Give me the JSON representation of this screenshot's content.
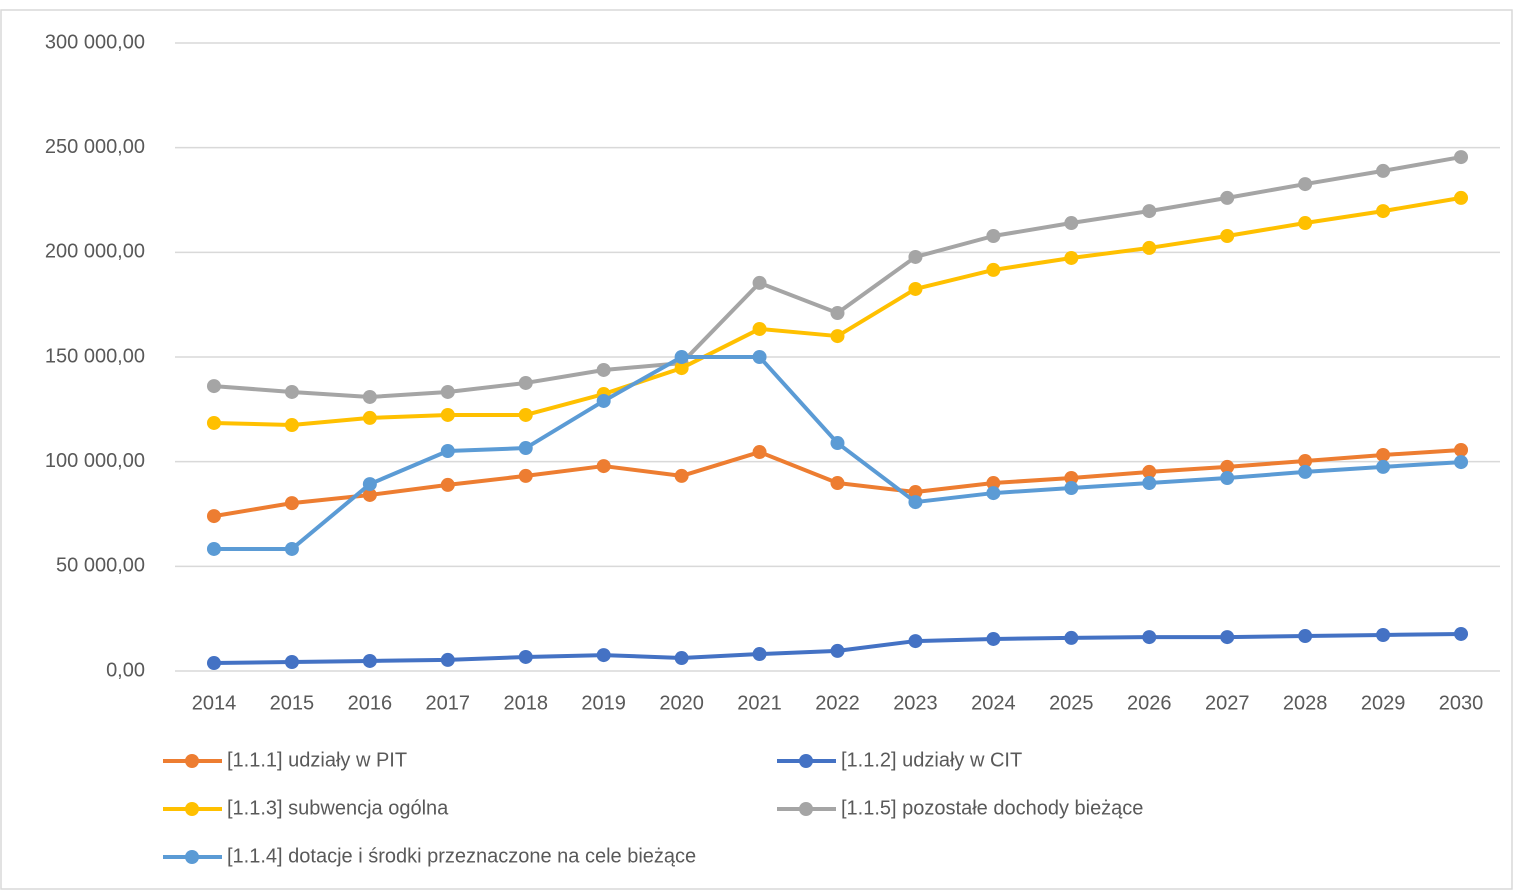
{
  "chart_data": {
    "type": "line",
    "categories": [
      "2014",
      "2015",
      "2016",
      "2017",
      "2018",
      "2019",
      "2020",
      "2021",
      "2022",
      "2023",
      "2024",
      "2025",
      "2026",
      "2027",
      "2028",
      "2029",
      "2030"
    ],
    "series": [
      {
        "name": "[1.1.1] udziały w PIT",
        "color": "#ed7d31",
        "values": [
          74000,
          80200,
          84100,
          88900,
          93200,
          97900,
          93200,
          104600,
          89800,
          85500,
          89800,
          92200,
          95100,
          97500,
          100300,
          103200,
          105600
        ]
      },
      {
        "name": "[1.1.2] udziały w CIT",
        "color": "#4472c4",
        "values": [
          3800,
          4300,
          4800,
          5300,
          6700,
          7600,
          6200,
          8100,
          9600,
          14300,
          15300,
          15800,
          16200,
          16200,
          16700,
          17200,
          17700
        ]
      },
      {
        "name": "[1.1.3] subwencja ogólna",
        "color": "#ffc000",
        "values": [
          118500,
          117500,
          120900,
          122300,
          122300,
          132300,
          144700,
          163400,
          160000,
          182500,
          191600,
          197300,
          202100,
          207800,
          214000,
          219700,
          226000
        ]
      },
      {
        "name": "[1.1.5]  pozostałe dochody bieżące",
        "color": "#a5a5a5",
        "values": [
          136100,
          133300,
          130900,
          133300,
          137600,
          143800,
          147100,
          185400,
          171000,
          197800,
          207800,
          214000,
          219700,
          226000,
          232600,
          238900,
          245500
        ]
      },
      {
        "name": "[1.1.4]  dotacje i środki przeznaczone na cele bieżące",
        "color": "#5b9bd5",
        "values": [
          58300,
          58300,
          89300,
          105100,
          106500,
          129000,
          150000,
          150000,
          108900,
          80700,
          85000,
          87400,
          89800,
          92200,
          95100,
          97500,
          99800
        ]
      }
    ],
    "ylim": [
      0,
      300000
    ],
    "yticks": [
      {
        "value": 0,
        "label": "0,00"
      },
      {
        "value": 50000,
        "label": "50 000,00"
      },
      {
        "value": 100000,
        "label": "100 000,00"
      },
      {
        "value": 150000,
        "label": "150 000,00"
      },
      {
        "value": 200000,
        "label": "200 000,00"
      },
      {
        "value": 250000,
        "label": "250 000,00"
      },
      {
        "value": 300000,
        "label": "300 000,00"
      }
    ],
    "grid": true,
    "legend": "bottom"
  }
}
